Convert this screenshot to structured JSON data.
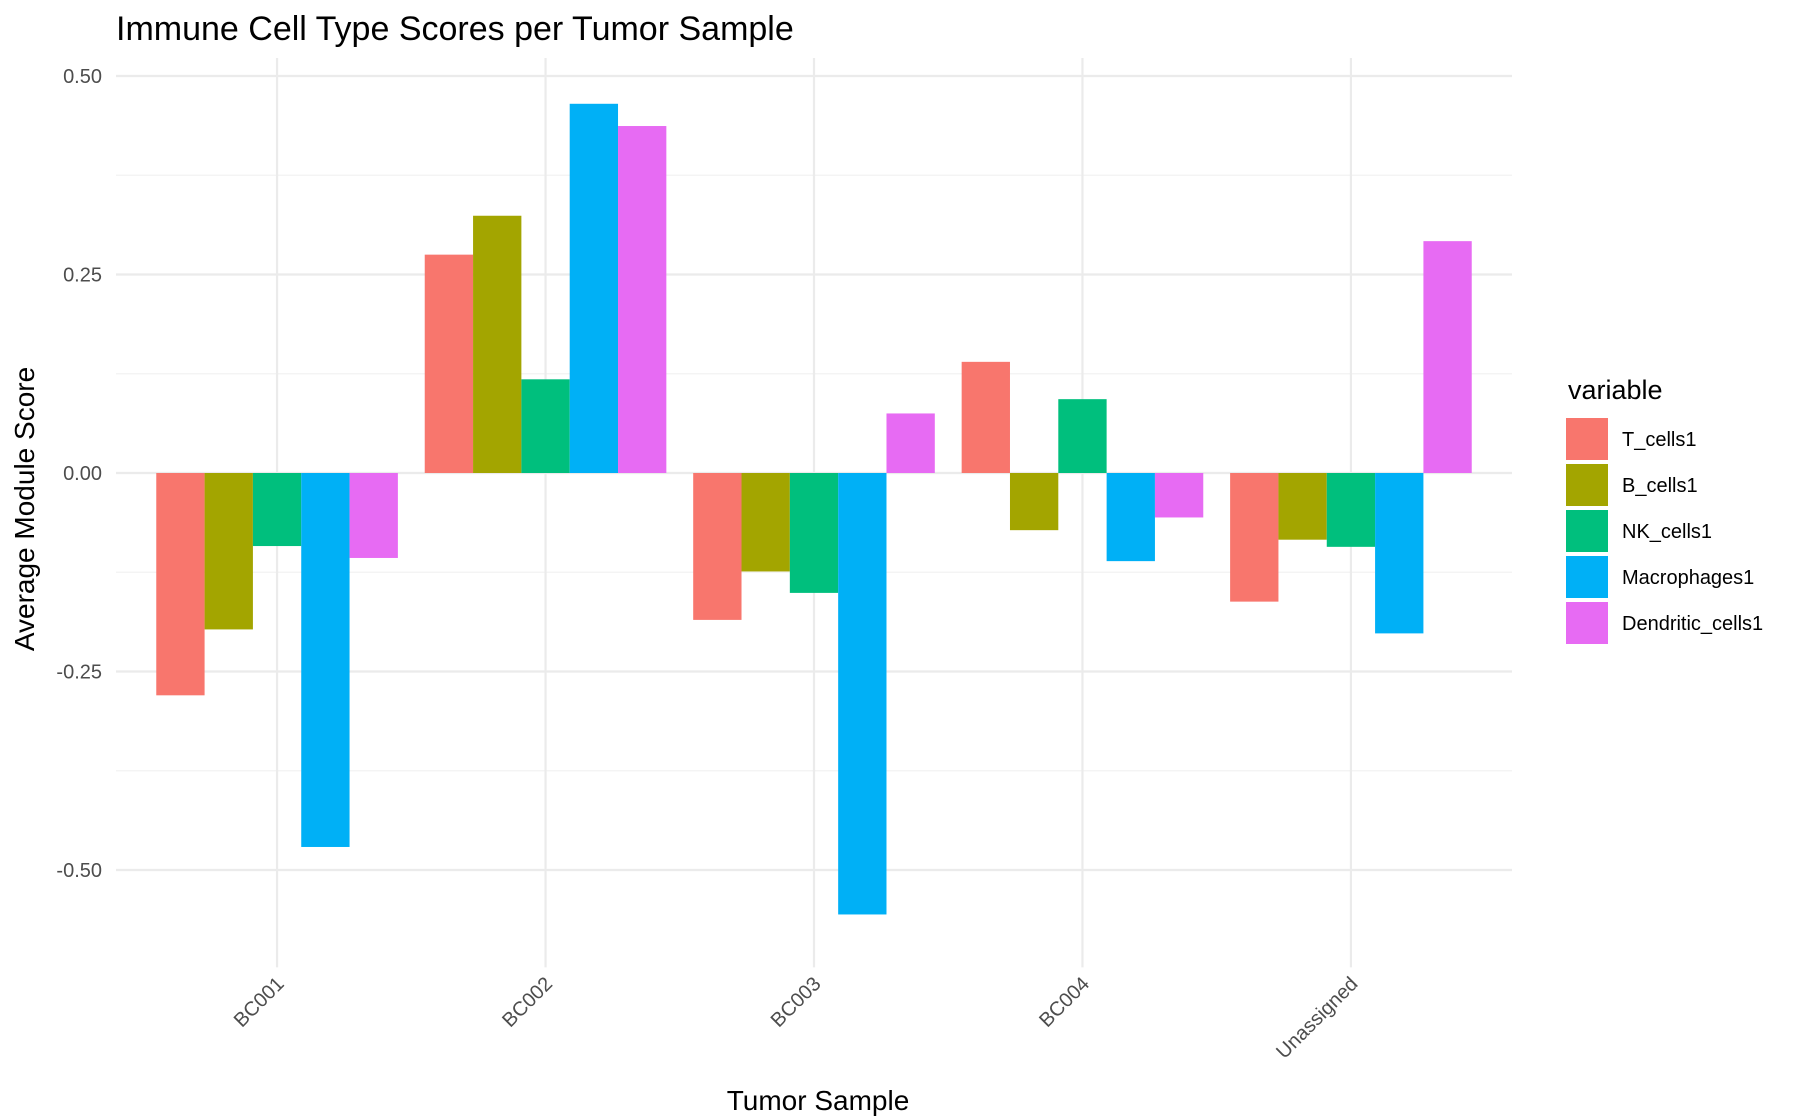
{
  "chart_data": {
    "type": "bar",
    "title": "Immune Cell Type Scores per Tumor Sample",
    "xlabel": "Tumor Sample",
    "ylabel": "Average Module Score",
    "categories": [
      "BC001",
      "BC002",
      "BC003",
      "BC004",
      "Unassigned"
    ],
    "ylim": [
      -0.6,
      0.5
    ],
    "yticks": [
      0.5,
      0.25,
      0.0,
      -0.25,
      -0.5
    ],
    "ytick_labels": [
      "0.50",
      "0.25",
      "0.00",
      "-0.25",
      "-0.50"
    ],
    "grid": true,
    "legend_title": "variable",
    "legend_position": "right",
    "series": [
      {
        "name": "T_cells1",
        "color": "#F8766D",
        "values": [
          -0.28,
          0.275,
          -0.185,
          0.14,
          -0.162
        ]
      },
      {
        "name": "B_cells1",
        "color": "#A3A500",
        "values": [
          -0.197,
          0.324,
          -0.124,
          -0.072,
          -0.084
        ]
      },
      {
        "name": "NK_cells1",
        "color": "#00BF7D",
        "values": [
          -0.092,
          0.118,
          -0.151,
          0.093,
          -0.093
        ]
      },
      {
        "name": "Macrophages1",
        "color": "#00B0F6",
        "values": [
          -0.471,
          0.465,
          -0.556,
          -0.111,
          -0.202
        ]
      },
      {
        "name": "Dendritic_cells1",
        "color": "#E76BF3",
        "values": [
          -0.107,
          0.437,
          0.075,
          -0.056,
          0.292
        ]
      }
    ]
  }
}
